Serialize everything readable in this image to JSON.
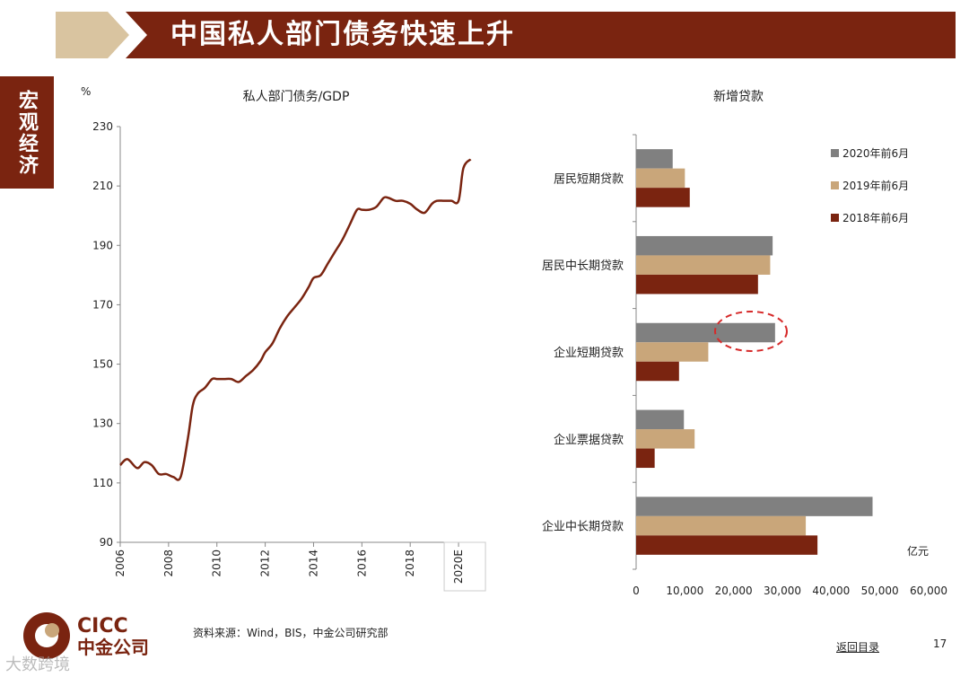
{
  "header": {
    "title": "中国私人部门债务快速上升"
  },
  "side_tab": {
    "label": "宏观经济"
  },
  "footer": {
    "source": "资料来源：Wind，BIS，中金公司研究部",
    "toc_link": "返回目录",
    "page_number": "17",
    "watermark": "大数跨境"
  },
  "logo": {
    "en": "CICC",
    "cn": "中金公司"
  },
  "colors": {
    "brand": "#7a2410",
    "chevron": "#d9c4a0",
    "gray": "#808080",
    "tan": "#c9a67a",
    "dark": "#7a2410",
    "circle": "#d62a2a"
  },
  "chart_data": [
    {
      "type": "line",
      "title": "私人部门债务/GDP",
      "unit": "%",
      "x_ticks": [
        "2006",
        "2008",
        "2010",
        "2012",
        "2014",
        "2016",
        "2018",
        "2020E"
      ],
      "y_ticks": [
        90,
        110,
        130,
        150,
        170,
        190,
        210,
        230
      ],
      "ylim": [
        90,
        230
      ],
      "xlim": [
        2006,
        2021
      ],
      "x": [
        2006.0,
        2006.3,
        2006.7,
        2007.0,
        2007.3,
        2007.6,
        2007.9,
        2008.2,
        2008.5,
        2008.8,
        2009.0,
        2009.2,
        2009.5,
        2009.8,
        2010.0,
        2010.3,
        2010.6,
        2010.9,
        2011.2,
        2011.5,
        2011.8,
        2012.0,
        2012.3,
        2012.6,
        2012.9,
        2013.2,
        2013.5,
        2013.8,
        2014.0,
        2014.3,
        2014.6,
        2014.9,
        2015.2,
        2015.5,
        2015.8,
        2016.0,
        2016.3,
        2016.6,
        2016.9,
        2017.1,
        2017.4,
        2017.7,
        2018.0,
        2018.3,
        2018.6,
        2018.9,
        2019.1,
        2019.4,
        2019.7,
        2020.0,
        2020.2,
        2020.5
      ],
      "y": [
        116,
        118,
        115,
        117,
        116,
        113,
        113,
        112,
        112,
        125,
        136,
        140,
        142,
        145,
        145,
        145,
        145,
        144,
        146,
        148,
        151,
        154,
        157,
        162,
        166,
        169,
        172,
        176,
        179,
        180,
        184,
        188,
        192,
        197,
        202,
        202,
        202,
        203,
        206,
        206,
        205,
        205,
        204,
        202,
        201,
        204,
        205,
        205,
        205,
        205,
        216,
        219
      ],
      "xlabel": "",
      "ylabel": "",
      "grid": false
    },
    {
      "type": "bar",
      "orientation": "horizontal",
      "title": "新增贷款",
      "unit": "亿元",
      "categories": [
        "居民短期贷款",
        "居民中长期贷款",
        "企业短期贷款",
        "企业票据贷款",
        "企业中长期贷款"
      ],
      "series": [
        {
          "name": "2020年前6月",
          "color": "#808080",
          "values": [
            7500,
            28000,
            28500,
            9800,
            48500
          ]
        },
        {
          "name": "2019年前6月",
          "color": "#c9a67a",
          "values": [
            10000,
            27500,
            14800,
            12000,
            34800
          ]
        },
        {
          "name": "2018年前6月",
          "color": "#7a2410",
          "values": [
            11000,
            25000,
            8800,
            3800,
            37200
          ]
        }
      ],
      "x_ticks": [
        "0",
        "10,000",
        "20,000",
        "30,000",
        "40,000",
        "50,000",
        "60,000"
      ],
      "xlim": [
        0,
        60000
      ],
      "legend": "top-right",
      "annotation": "ellipse around 企业短期贷款 2020年前6月 bar end"
    }
  ]
}
